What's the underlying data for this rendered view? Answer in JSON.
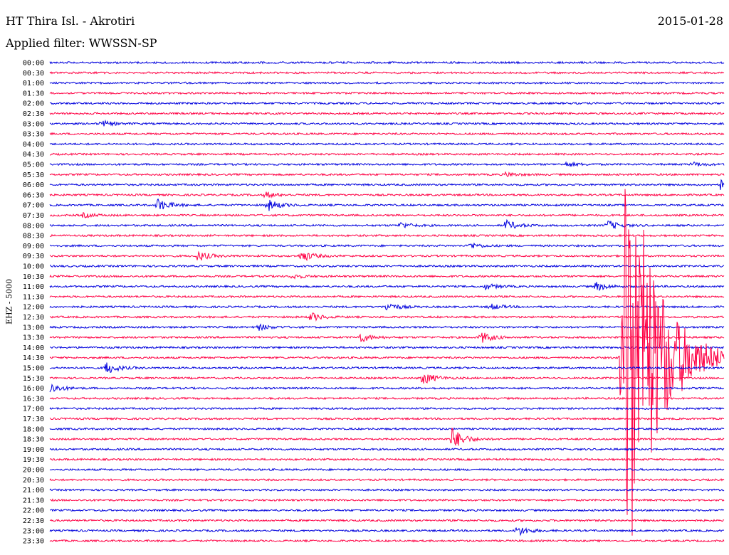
{
  "header": {
    "station": "HT Thira Isl. - Akrotiri",
    "date": "2015-01-28",
    "filter": "Applied filter: WWSSN-SP",
    "channel": "EHZ - 5000"
  },
  "colors": {
    "trace_even": "#0000dd",
    "trace_odd": "#ff0044",
    "background": "#ffffff",
    "text": "#000000"
  },
  "chart_data": {
    "type": "line",
    "title": "HT Thira Isl. - Akrotiri",
    "xlabel": "",
    "ylabel": "EHZ - 5000",
    "x_unit": "minutes",
    "xlim": [
      0,
      30
    ],
    "rows": [
      "00:00",
      "00:30",
      "01:00",
      "01:30",
      "02:00",
      "02:30",
      "03:00",
      "03:30",
      "04:00",
      "04:30",
      "05:00",
      "05:30",
      "06:00",
      "06:30",
      "07:00",
      "07:30",
      "08:00",
      "08:30",
      "09:00",
      "09:30",
      "10:00",
      "10:30",
      "11:00",
      "11:30",
      "12:00",
      "12:30",
      "13:00",
      "13:30",
      "14:00",
      "14:30",
      "15:00",
      "15:30",
      "16:00",
      "16:30",
      "17:00",
      "17:30",
      "18:00",
      "18:30",
      "19:00",
      "19:30",
      "20:00",
      "20:30",
      "21:00",
      "21:30",
      "22:00",
      "22:30",
      "23:00",
      "23:30"
    ],
    "events": [
      {
        "row": "03:00",
        "minute": 2.3,
        "amplitude": 4
      },
      {
        "row": "05:00",
        "minute": 23.0,
        "amplitude": 3
      },
      {
        "row": "05:00",
        "minute": 28.6,
        "amplitude": 3
      },
      {
        "row": "05:30",
        "minute": 20.3,
        "amplitude": 3
      },
      {
        "row": "06:00",
        "minute": 29.8,
        "amplitude": 8
      },
      {
        "row": "06:30",
        "minute": 9.6,
        "amplitude": 4
      },
      {
        "row": "07:00",
        "minute": 4.8,
        "amplitude": 9
      },
      {
        "row": "07:00",
        "minute": 9.7,
        "amplitude": 8
      },
      {
        "row": "07:30",
        "minute": 1.5,
        "amplitude": 3
      },
      {
        "row": "08:00",
        "minute": 15.6,
        "amplitude": 4
      },
      {
        "row": "08:00",
        "minute": 20.3,
        "amplitude": 7
      },
      {
        "row": "08:00",
        "minute": 24.8,
        "amplitude": 7
      },
      {
        "row": "09:00",
        "minute": 18.7,
        "amplitude": 4
      },
      {
        "row": "09:30",
        "minute": 6.6,
        "amplitude": 7
      },
      {
        "row": "09:30",
        "minute": 11.2,
        "amplitude": 8
      },
      {
        "row": "10:30",
        "minute": 10.8,
        "amplitude": 3
      },
      {
        "row": "11:00",
        "minute": 19.4,
        "amplitude": 4
      },
      {
        "row": "11:00",
        "minute": 24.3,
        "amplitude": 6
      },
      {
        "row": "12:00",
        "minute": 15.0,
        "amplitude": 6
      },
      {
        "row": "12:00",
        "minute": 19.6,
        "amplitude": 4
      },
      {
        "row": "12:30",
        "minute": 11.6,
        "amplitude": 6
      },
      {
        "row": "13:00",
        "minute": 9.3,
        "amplitude": 4
      },
      {
        "row": "13:30",
        "minute": 13.8,
        "amplitude": 7
      },
      {
        "row": "13:30",
        "minute": 19.2,
        "amplitude": 8
      },
      {
        "row": "14:30",
        "minute": 26.9,
        "amplitude": 6
      },
      {
        "row": "15:00",
        "minute": 2.5,
        "amplitude": 9
      },
      {
        "row": "15:30",
        "minute": 16.6,
        "amplitude": 9
      },
      {
        "row": "16:00",
        "minute": 0.0,
        "amplitude": 7
      },
      {
        "row": "18:30",
        "minute": 17.9,
        "amplitude": 16
      },
      {
        "row": "23:00",
        "minute": 20.8,
        "amplitude": 7
      }
    ],
    "main_event": {
      "row": "14:30",
      "minute": 25.5,
      "peak_amplitude": 330,
      "duration_minutes": 2.8
    }
  }
}
